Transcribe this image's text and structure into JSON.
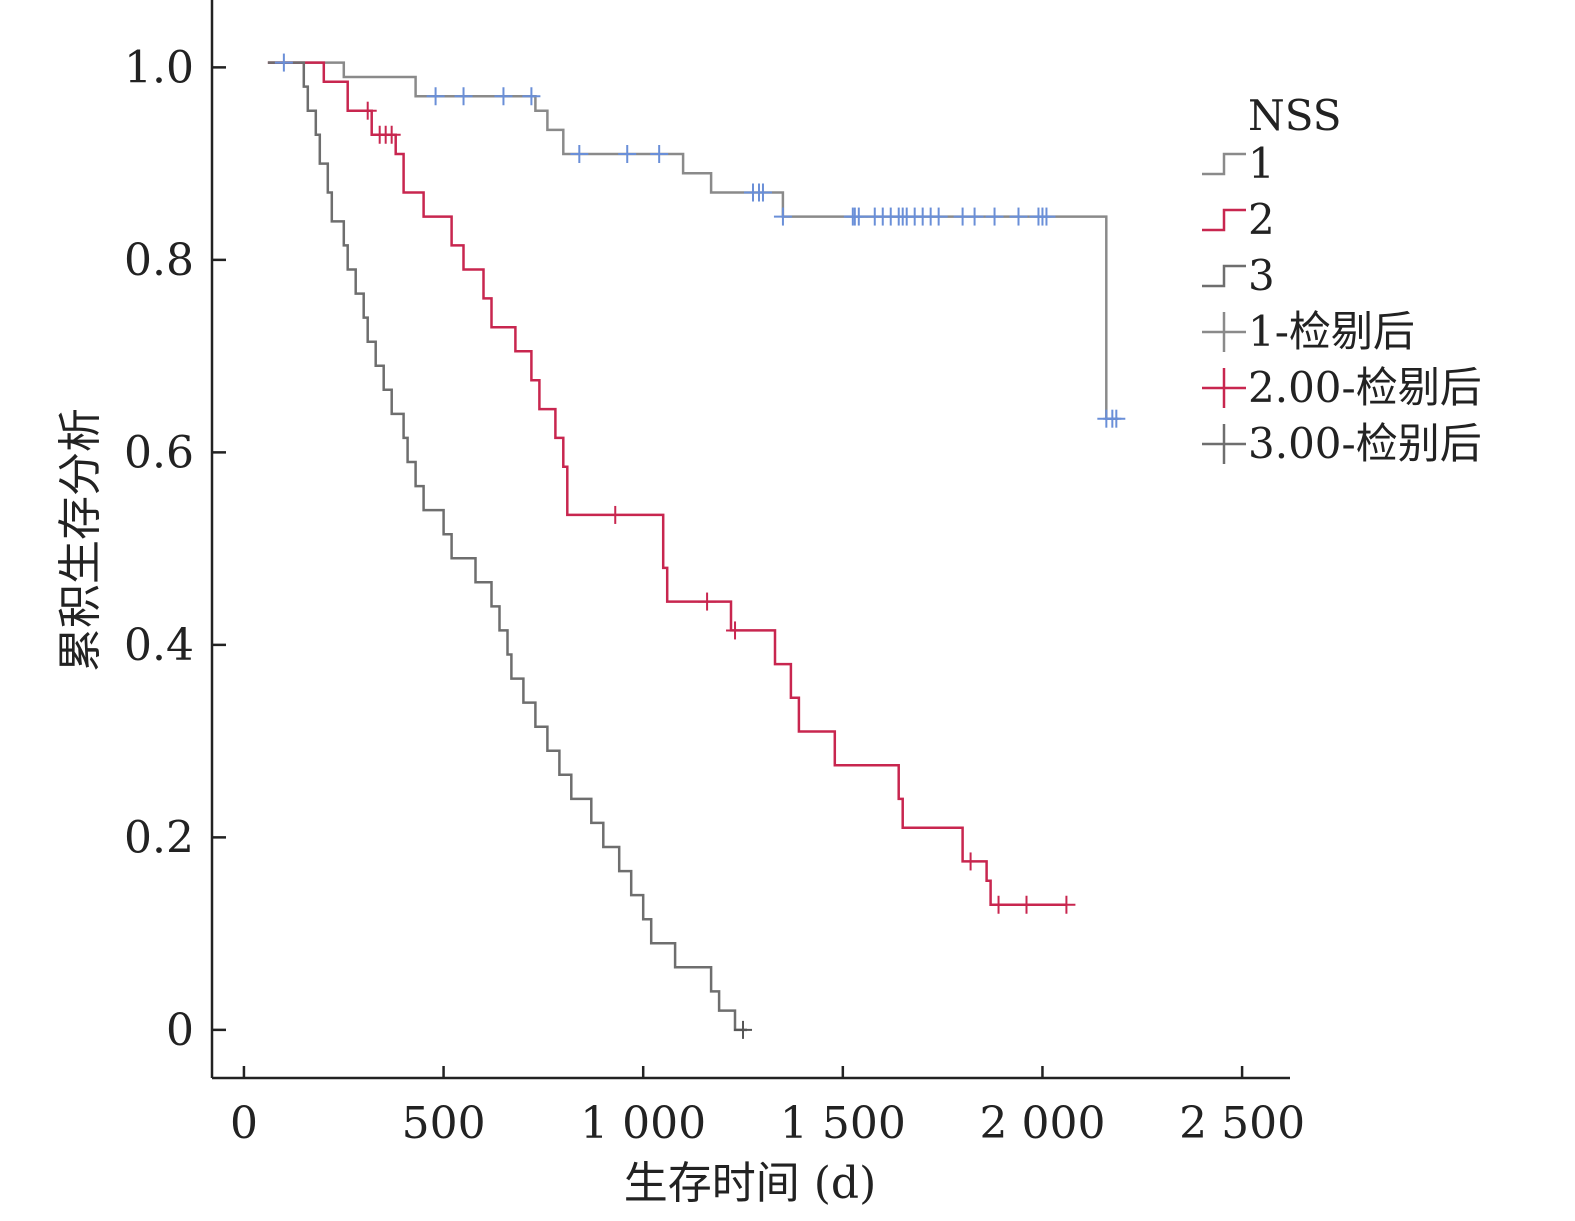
{
  "chart_data": {
    "type": "line",
    "subtype": "kaplan-meier",
    "title": "",
    "xlabel": "生存时间 (d)",
    "ylabel": "累积生存分析",
    "xlim": [
      -80,
      2620
    ],
    "ylim": [
      -0.05,
      1.07
    ],
    "xticks": [
      0,
      500,
      1000,
      1500,
      2000,
      2500
    ],
    "xtick_labels": [
      "0",
      "500",
      "1 000",
      "1 500",
      "2 000",
      "2 500"
    ],
    "yticks": [
      0,
      0.2,
      0.4,
      0.6,
      0.8,
      1.0
    ],
    "ytick_labels": [
      "0",
      "0.2",
      "0.4",
      "0.6",
      "0.8",
      "1.0"
    ],
    "grid": false,
    "legend_title": "NSS",
    "legend_position": "right",
    "legend": [
      {
        "label": "1",
        "kind": "step",
        "series": 0
      },
      {
        "label": "2",
        "kind": "step",
        "series": 1
      },
      {
        "label": "3",
        "kind": "step",
        "series": 2
      },
      {
        "label": "1-检剔后",
        "kind": "censor",
        "series": 0
      },
      {
        "label": "2.00-检剔后",
        "kind": "censor",
        "series": 1
      },
      {
        "label": "3.00-检别后",
        "kind": "censor",
        "series": 2
      }
    ],
    "series": [
      {
        "name": "1",
        "color": "#8a8a8a",
        "censor_color": "#6a8fd8",
        "points": [
          [
            60,
            1.005
          ],
          [
            250,
            1.005
          ],
          [
            250,
            0.99
          ],
          [
            430,
            0.99
          ],
          [
            430,
            0.97
          ],
          [
            730,
            0.97
          ],
          [
            730,
            0.955
          ],
          [
            760,
            0.955
          ],
          [
            760,
            0.935
          ],
          [
            800,
            0.935
          ],
          [
            800,
            0.91
          ],
          [
            1100,
            0.91
          ],
          [
            1100,
            0.89
          ],
          [
            1170,
            0.89
          ],
          [
            1170,
            0.87
          ],
          [
            1350,
            0.87
          ],
          [
            1350,
            0.845
          ],
          [
            2160,
            0.845
          ],
          [
            2160,
            0.635
          ],
          [
            2190,
            0.635
          ]
        ],
        "censored": [
          [
            100,
            1.005
          ],
          [
            480,
            0.97
          ],
          [
            550,
            0.97
          ],
          [
            650,
            0.97
          ],
          [
            720,
            0.97
          ],
          [
            840,
            0.91
          ],
          [
            960,
            0.91
          ],
          [
            1040,
            0.91
          ],
          [
            1275,
            0.87
          ],
          [
            1290,
            0.87
          ],
          [
            1300,
            0.87
          ],
          [
            1350,
            0.845
          ],
          [
            1525,
            0.845
          ],
          [
            1530,
            0.845
          ],
          [
            1540,
            0.845
          ],
          [
            1580,
            0.845
          ],
          [
            1600,
            0.845
          ],
          [
            1620,
            0.845
          ],
          [
            1640,
            0.845
          ],
          [
            1650,
            0.845
          ],
          [
            1660,
            0.845
          ],
          [
            1680,
            0.845
          ],
          [
            1700,
            0.845
          ],
          [
            1720,
            0.845
          ],
          [
            1740,
            0.845
          ],
          [
            1800,
            0.845
          ],
          [
            1830,
            0.845
          ],
          [
            1880,
            0.845
          ],
          [
            1940,
            0.845
          ],
          [
            1990,
            0.845
          ],
          [
            2000,
            0.845
          ],
          [
            2010,
            0.845
          ],
          [
            2160,
            0.635
          ],
          [
            2175,
            0.635
          ],
          [
            2185,
            0.635
          ]
        ]
      },
      {
        "name": "2",
        "color": "#c8264f",
        "censor_color": "#c8264f",
        "points": [
          [
            60,
            1.005
          ],
          [
            200,
            1.005
          ],
          [
            200,
            0.985
          ],
          [
            260,
            0.985
          ],
          [
            260,
            0.955
          ],
          [
            320,
            0.955
          ],
          [
            320,
            0.93
          ],
          [
            380,
            0.93
          ],
          [
            380,
            0.91
          ],
          [
            400,
            0.91
          ],
          [
            400,
            0.87
          ],
          [
            450,
            0.87
          ],
          [
            450,
            0.845
          ],
          [
            520,
            0.845
          ],
          [
            520,
            0.815
          ],
          [
            550,
            0.815
          ],
          [
            550,
            0.79
          ],
          [
            600,
            0.79
          ],
          [
            600,
            0.76
          ],
          [
            620,
            0.76
          ],
          [
            620,
            0.73
          ],
          [
            680,
            0.73
          ],
          [
            680,
            0.705
          ],
          [
            720,
            0.705
          ],
          [
            720,
            0.675
          ],
          [
            740,
            0.675
          ],
          [
            740,
            0.645
          ],
          [
            780,
            0.645
          ],
          [
            780,
            0.615
          ],
          [
            800,
            0.615
          ],
          [
            800,
            0.585
          ],
          [
            810,
            0.585
          ],
          [
            810,
            0.535
          ],
          [
            1050,
            0.535
          ],
          [
            1050,
            0.48
          ],
          [
            1060,
            0.48
          ],
          [
            1060,
            0.445
          ],
          [
            1220,
            0.445
          ],
          [
            1220,
            0.415
          ],
          [
            1330,
            0.415
          ],
          [
            1330,
            0.38
          ],
          [
            1370,
            0.38
          ],
          [
            1370,
            0.345
          ],
          [
            1390,
            0.345
          ],
          [
            1390,
            0.31
          ],
          [
            1480,
            0.31
          ],
          [
            1480,
            0.275
          ],
          [
            1640,
            0.275
          ],
          [
            1640,
            0.24
          ],
          [
            1650,
            0.24
          ],
          [
            1650,
            0.21
          ],
          [
            1800,
            0.21
          ],
          [
            1800,
            0.175
          ],
          [
            1860,
            0.175
          ],
          [
            1860,
            0.155
          ],
          [
            1870,
            0.155
          ],
          [
            1870,
            0.13
          ],
          [
            2060,
            0.13
          ]
        ],
        "censored": [
          [
            310,
            0.955
          ],
          [
            340,
            0.93
          ],
          [
            355,
            0.93
          ],
          [
            370,
            0.93
          ],
          [
            930,
            0.535
          ],
          [
            1160,
            0.445
          ],
          [
            1230,
            0.415
          ],
          [
            1820,
            0.175
          ],
          [
            1890,
            0.13
          ],
          [
            1960,
            0.13
          ],
          [
            2060,
            0.13
          ]
        ]
      },
      {
        "name": "3",
        "color": "#6e6e6e",
        "censor_color": "#555555",
        "points": [
          [
            60,
            1.005
          ],
          [
            150,
            1.005
          ],
          [
            150,
            0.98
          ],
          [
            160,
            0.98
          ],
          [
            160,
            0.955
          ],
          [
            180,
            0.955
          ],
          [
            180,
            0.93
          ],
          [
            190,
            0.93
          ],
          [
            190,
            0.9
          ],
          [
            210,
            0.9
          ],
          [
            210,
            0.87
          ],
          [
            220,
            0.87
          ],
          [
            220,
            0.84
          ],
          [
            250,
            0.84
          ],
          [
            250,
            0.815
          ],
          [
            260,
            0.815
          ],
          [
            260,
            0.79
          ],
          [
            280,
            0.79
          ],
          [
            280,
            0.765
          ],
          [
            300,
            0.765
          ],
          [
            300,
            0.74
          ],
          [
            310,
            0.74
          ],
          [
            310,
            0.715
          ],
          [
            330,
            0.715
          ],
          [
            330,
            0.69
          ],
          [
            350,
            0.69
          ],
          [
            350,
            0.665
          ],
          [
            370,
            0.665
          ],
          [
            370,
            0.64
          ],
          [
            400,
            0.64
          ],
          [
            400,
            0.615
          ],
          [
            410,
            0.615
          ],
          [
            410,
            0.59
          ],
          [
            430,
            0.59
          ],
          [
            430,
            0.565
          ],
          [
            450,
            0.565
          ],
          [
            450,
            0.54
          ],
          [
            500,
            0.54
          ],
          [
            500,
            0.515
          ],
          [
            520,
            0.515
          ],
          [
            520,
            0.49
          ],
          [
            580,
            0.49
          ],
          [
            580,
            0.465
          ],
          [
            620,
            0.465
          ],
          [
            620,
            0.44
          ],
          [
            640,
            0.44
          ],
          [
            640,
            0.415
          ],
          [
            660,
            0.415
          ],
          [
            660,
            0.39
          ],
          [
            670,
            0.39
          ],
          [
            670,
            0.365
          ],
          [
            700,
            0.365
          ],
          [
            700,
            0.34
          ],
          [
            730,
            0.34
          ],
          [
            730,
            0.315
          ],
          [
            760,
            0.315
          ],
          [
            760,
            0.29
          ],
          [
            790,
            0.29
          ],
          [
            790,
            0.265
          ],
          [
            820,
            0.265
          ],
          [
            820,
            0.24
          ],
          [
            870,
            0.24
          ],
          [
            870,
            0.215
          ],
          [
            900,
            0.215
          ],
          [
            900,
            0.19
          ],
          [
            940,
            0.19
          ],
          [
            940,
            0.165
          ],
          [
            970,
            0.165
          ],
          [
            970,
            0.14
          ],
          [
            1000,
            0.14
          ],
          [
            1000,
            0.115
          ],
          [
            1020,
            0.115
          ],
          [
            1020,
            0.09
          ],
          [
            1080,
            0.09
          ],
          [
            1080,
            0.065
          ],
          [
            1170,
            0.065
          ],
          [
            1170,
            0.04
          ],
          [
            1190,
            0.04
          ],
          [
            1190,
            0.02
          ],
          [
            1230,
            0.02
          ],
          [
            1230,
            0.0
          ],
          [
            1260,
            0.0
          ]
        ],
        "censored": [
          [
            1250,
            0.0
          ]
        ]
      }
    ]
  }
}
